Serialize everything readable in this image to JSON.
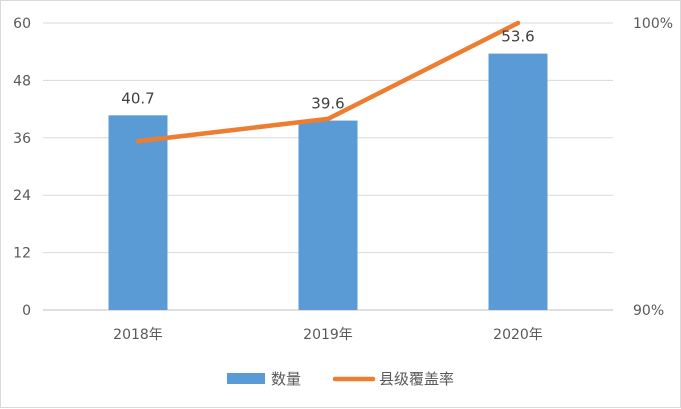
{
  "chart_data": {
    "type": "bar",
    "title": "",
    "xlabel": "",
    "ylabel": "",
    "categories": [
      "2018年",
      "2019年",
      "2020年"
    ],
    "series": [
      {
        "name": "数量",
        "type": "bar",
        "axis": "left",
        "color": "#5B9BD5",
        "values": [
          40.7,
          39.6,
          53.6
        ],
        "data_labels": [
          "40.7",
          "39.6",
          "53.6"
        ]
      },
      {
        "name": "县级覆盖率",
        "type": "line",
        "axis": "right",
        "color": "#ED7D31",
        "values": [
          0.9588,
          0.9666,
          1.0
        ]
      }
    ],
    "ylim": [
      0,
      60
    ],
    "y_ticks": [
      "0",
      "12",
      "24",
      "36",
      "48",
      "60"
    ],
    "y2lim": [
      0.9,
      1.0
    ],
    "y2_ticks": [
      "90%",
      "100%"
    ],
    "grid": true,
    "legend_position": "bottom"
  }
}
